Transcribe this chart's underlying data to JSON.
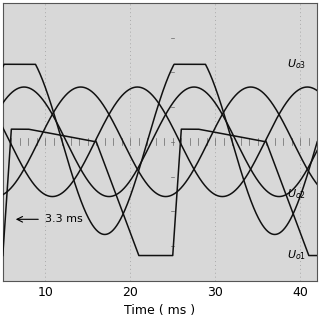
{
  "xlabel": "Time ( ms )",
  "xlim": [
    5.0,
    42.0
  ],
  "ylim": [
    -1.65,
    1.65
  ],
  "bg_color": "#d8d8d8",
  "line_color": "#111111",
  "grid_color": "#aaaaaa",
  "xticks": [
    10,
    20,
    30,
    40
  ],
  "label_u03": "$\\mathit{U}_{o3}$",
  "label_u02": "$\\mathit{U}_{o2}$",
  "label_u01": "$\\mathit{U}_{o1}$",
  "annotation_3_3ms": "3.3 ms",
  "figsize": [
    3.2,
    3.2
  ],
  "dpi": 100
}
